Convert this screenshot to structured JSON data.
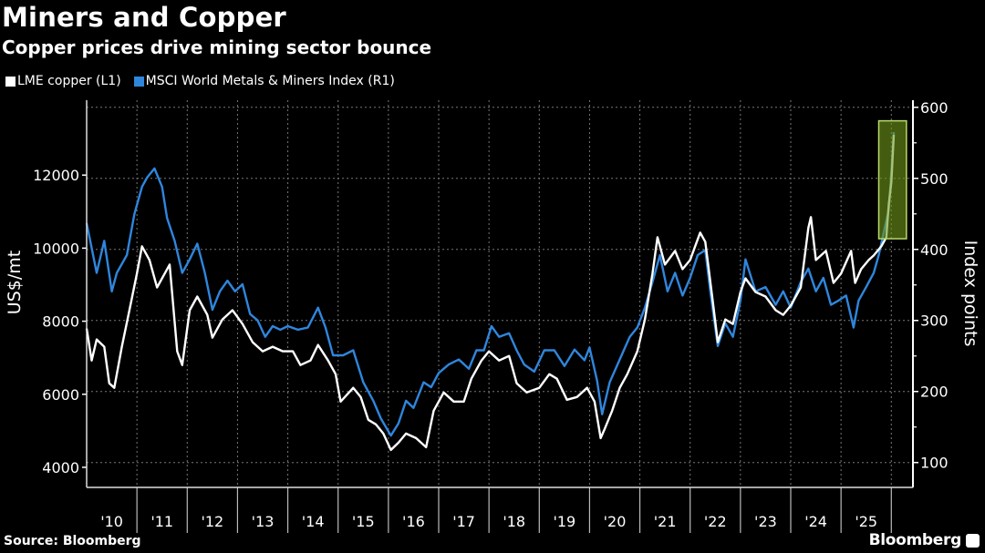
{
  "header": {
    "title": "Miners and Copper",
    "subtitle": "Copper prices drive mining sector bounce"
  },
  "footer": {
    "source": "Source: Bloomberg",
    "brand": "Bloomberg"
  },
  "colors": {
    "background": "#000000",
    "copper": "#ffffff",
    "miners": "#2f86dd",
    "highlight": "#6f9a1a",
    "grid": "#777777"
  },
  "chart_data": {
    "type": "line",
    "title": "Miners and Copper",
    "subtitle": "Copper prices drive mining sector bounce",
    "legend_placement": "top-left",
    "grid": true,
    "xlim": [
      2010,
      2026.43
    ],
    "x_ticks": [
      "'10",
      "'11",
      "'12",
      "'13",
      "'14",
      "'15",
      "'16",
      "'17",
      "'18",
      "'19",
      "'20",
      "'21",
      "'22",
      "'23",
      "'24",
      "'25"
    ],
    "y_left": {
      "label": "US$/mt",
      "lim": [
        3450,
        14050
      ],
      "ticks": [
        4000,
        6000,
        8000,
        10000,
        12000
      ]
    },
    "y_right": {
      "label": "Index points",
      "lim": [
        65,
        610
      ],
      "ticks": [
        100,
        200,
        300,
        400,
        500,
        600
      ]
    },
    "highlight": {
      "x": [
        2025.75,
        2026.3
      ],
      "y_right": [
        415,
        581
      ]
    },
    "series": [
      {
        "name": "LME copper (L1)",
        "axis": "left",
        "color": "#ffffff",
        "points": [
          [
            2010.0,
            7800
          ],
          [
            2010.1,
            6925
          ],
          [
            2010.2,
            7500
          ],
          [
            2010.35,
            7300
          ],
          [
            2010.45,
            6300
          ],
          [
            2010.55,
            6175
          ],
          [
            2010.7,
            7300
          ],
          [
            2010.85,
            8300
          ],
          [
            2011.0,
            9300
          ],
          [
            2011.1,
            10050
          ],
          [
            2011.25,
            9675
          ],
          [
            2011.4,
            8925
          ],
          [
            2011.55,
            9300
          ],
          [
            2011.65,
            9550
          ],
          [
            2011.8,
            7175
          ],
          [
            2011.9,
            6800
          ],
          [
            2012.05,
            8300
          ],
          [
            2012.2,
            8675
          ],
          [
            2012.4,
            8175
          ],
          [
            2012.5,
            7550
          ],
          [
            2012.7,
            8050
          ],
          [
            2012.9,
            8300
          ],
          [
            2013.1,
            7925
          ],
          [
            2013.3,
            7425
          ],
          [
            2013.5,
            7175
          ],
          [
            2013.7,
            7300
          ],
          [
            2013.9,
            7175
          ],
          [
            2014.1,
            7175
          ],
          [
            2014.25,
            6800
          ],
          [
            2014.45,
            6925
          ],
          [
            2014.6,
            7350
          ],
          [
            2014.8,
            6925
          ],
          [
            2014.95,
            6550
          ],
          [
            2015.05,
            5800
          ],
          [
            2015.3,
            6175
          ],
          [
            2015.45,
            5925
          ],
          [
            2015.6,
            5300
          ],
          [
            2015.75,
            5175
          ],
          [
            2015.9,
            4925
          ],
          [
            2016.05,
            4475
          ],
          [
            2016.2,
            4675
          ],
          [
            2016.35,
            4925
          ],
          [
            2016.55,
            4800
          ],
          [
            2016.75,
            4550
          ],
          [
            2016.9,
            5550
          ],
          [
            2017.1,
            6050
          ],
          [
            2017.3,
            5800
          ],
          [
            2017.5,
            5800
          ],
          [
            2017.65,
            6425
          ],
          [
            2017.85,
            6925
          ],
          [
            2018.0,
            7175
          ],
          [
            2018.2,
            6925
          ],
          [
            2018.4,
            7050
          ],
          [
            2018.55,
            6300
          ],
          [
            2018.75,
            6050
          ],
          [
            2019.0,
            6175
          ],
          [
            2019.2,
            6550
          ],
          [
            2019.35,
            6425
          ],
          [
            2019.55,
            5850
          ],
          [
            2019.75,
            5925
          ],
          [
            2019.95,
            6175
          ],
          [
            2020.1,
            5800
          ],
          [
            2020.22,
            4800
          ],
          [
            2020.3,
            5050
          ],
          [
            2020.45,
            5550
          ],
          [
            2020.6,
            6175
          ],
          [
            2020.75,
            6550
          ],
          [
            2020.95,
            7175
          ],
          [
            2021.1,
            8050
          ],
          [
            2021.25,
            9300
          ],
          [
            2021.35,
            10300
          ],
          [
            2021.5,
            9550
          ],
          [
            2021.7,
            9925
          ],
          [
            2021.85,
            9425
          ],
          [
            2022.0,
            9675
          ],
          [
            2022.2,
            10425
          ],
          [
            2022.3,
            10175
          ],
          [
            2022.45,
            8550
          ],
          [
            2022.55,
            7425
          ],
          [
            2022.7,
            8050
          ],
          [
            2022.85,
            7925
          ],
          [
            2023.0,
            8800
          ],
          [
            2023.1,
            9175
          ],
          [
            2023.3,
            8800
          ],
          [
            2023.5,
            8675
          ],
          [
            2023.7,
            8300
          ],
          [
            2023.85,
            8175
          ],
          [
            2024.0,
            8425
          ],
          [
            2024.2,
            8925
          ],
          [
            2024.35,
            10550
          ],
          [
            2024.4,
            10850
          ],
          [
            2024.5,
            9675
          ],
          [
            2024.7,
            9925
          ],
          [
            2024.85,
            9050
          ],
          [
            2025.0,
            9300
          ],
          [
            2025.2,
            9925
          ],
          [
            2025.28,
            9050
          ],
          [
            2025.4,
            9425
          ],
          [
            2025.55,
            9675
          ],
          [
            2025.65,
            9800
          ],
          [
            2025.8,
            10050
          ],
          [
            2025.9,
            10300
          ],
          [
            2025.95,
            11200
          ],
          [
            2026.0,
            11800
          ],
          [
            2026.05,
            13100
          ]
        ]
      },
      {
        "name": "MSCI World Metals & Miners Index (R1)",
        "axis": "right",
        "color": "#2f86dd",
        "points": [
          [
            2010.0,
            437
          ],
          [
            2010.2,
            367
          ],
          [
            2010.35,
            412
          ],
          [
            2010.5,
            341
          ],
          [
            2010.6,
            367
          ],
          [
            2010.8,
            392
          ],
          [
            2010.95,
            450
          ],
          [
            2011.1,
            488
          ],
          [
            2011.2,
            501
          ],
          [
            2011.35,
            514
          ],
          [
            2011.5,
            488
          ],
          [
            2011.6,
            444
          ],
          [
            2011.75,
            412
          ],
          [
            2011.9,
            367
          ],
          [
            2012.05,
            386
          ],
          [
            2012.2,
            408
          ],
          [
            2012.35,
            367
          ],
          [
            2012.5,
            315
          ],
          [
            2012.65,
            341
          ],
          [
            2012.8,
            356
          ],
          [
            2012.95,
            341
          ],
          [
            2013.1,
            351
          ],
          [
            2013.25,
            309
          ],
          [
            2013.4,
            300
          ],
          [
            2013.55,
            277
          ],
          [
            2013.7,
            292
          ],
          [
            2013.85,
            287
          ],
          [
            2014.0,
            292
          ],
          [
            2014.2,
            287
          ],
          [
            2014.4,
            290
          ],
          [
            2014.6,
            318
          ],
          [
            2014.75,
            290
          ],
          [
            2014.9,
            251
          ],
          [
            2015.1,
            251
          ],
          [
            2015.3,
            258
          ],
          [
            2015.5,
            213
          ],
          [
            2015.7,
            187
          ],
          [
            2015.85,
            162
          ],
          [
            2016.05,
            138
          ],
          [
            2016.2,
            155
          ],
          [
            2016.35,
            187
          ],
          [
            2016.5,
            177
          ],
          [
            2016.7,
            213
          ],
          [
            2016.85,
            206
          ],
          [
            2017.0,
            226
          ],
          [
            2017.2,
            238
          ],
          [
            2017.4,
            245
          ],
          [
            2017.6,
            232
          ],
          [
            2017.75,
            258
          ],
          [
            2017.9,
            258
          ],
          [
            2018.05,
            292
          ],
          [
            2018.2,
            277
          ],
          [
            2018.4,
            282
          ],
          [
            2018.55,
            258
          ],
          [
            2018.7,
            238
          ],
          [
            2018.9,
            228
          ],
          [
            2019.1,
            258
          ],
          [
            2019.3,
            258
          ],
          [
            2019.5,
            236
          ],
          [
            2019.7,
            259
          ],
          [
            2019.9,
            244
          ],
          [
            2020.0,
            262
          ],
          [
            2020.15,
            215
          ],
          [
            2020.25,
            168
          ],
          [
            2020.4,
            213
          ],
          [
            2020.6,
            245
          ],
          [
            2020.8,
            277
          ],
          [
            2020.95,
            290
          ],
          [
            2021.1,
            318
          ],
          [
            2021.25,
            354
          ],
          [
            2021.4,
            392
          ],
          [
            2021.55,
            341
          ],
          [
            2021.7,
            367
          ],
          [
            2021.85,
            335
          ],
          [
            2022.0,
            360
          ],
          [
            2022.15,
            392
          ],
          [
            2022.3,
            399
          ],
          [
            2022.4,
            341
          ],
          [
            2022.55,
            264
          ],
          [
            2022.7,
            296
          ],
          [
            2022.85,
            277
          ],
          [
            2023.0,
            328
          ],
          [
            2023.1,
            386
          ],
          [
            2023.3,
            341
          ],
          [
            2023.5,
            347
          ],
          [
            2023.7,
            322
          ],
          [
            2023.85,
            341
          ],
          [
            2024.0,
            318
          ],
          [
            2024.2,
            354
          ],
          [
            2024.35,
            373
          ],
          [
            2024.5,
            341
          ],
          [
            2024.65,
            360
          ],
          [
            2024.8,
            322
          ],
          [
            2024.95,
            328
          ],
          [
            2025.1,
            335
          ],
          [
            2025.25,
            290
          ],
          [
            2025.35,
            328
          ],
          [
            2025.5,
            347
          ],
          [
            2025.65,
            367
          ],
          [
            2025.75,
            392
          ],
          [
            2025.85,
            424
          ],
          [
            2025.95,
            456
          ],
          [
            2026.0,
            508
          ],
          [
            2026.05,
            565
          ]
        ]
      }
    ]
  }
}
